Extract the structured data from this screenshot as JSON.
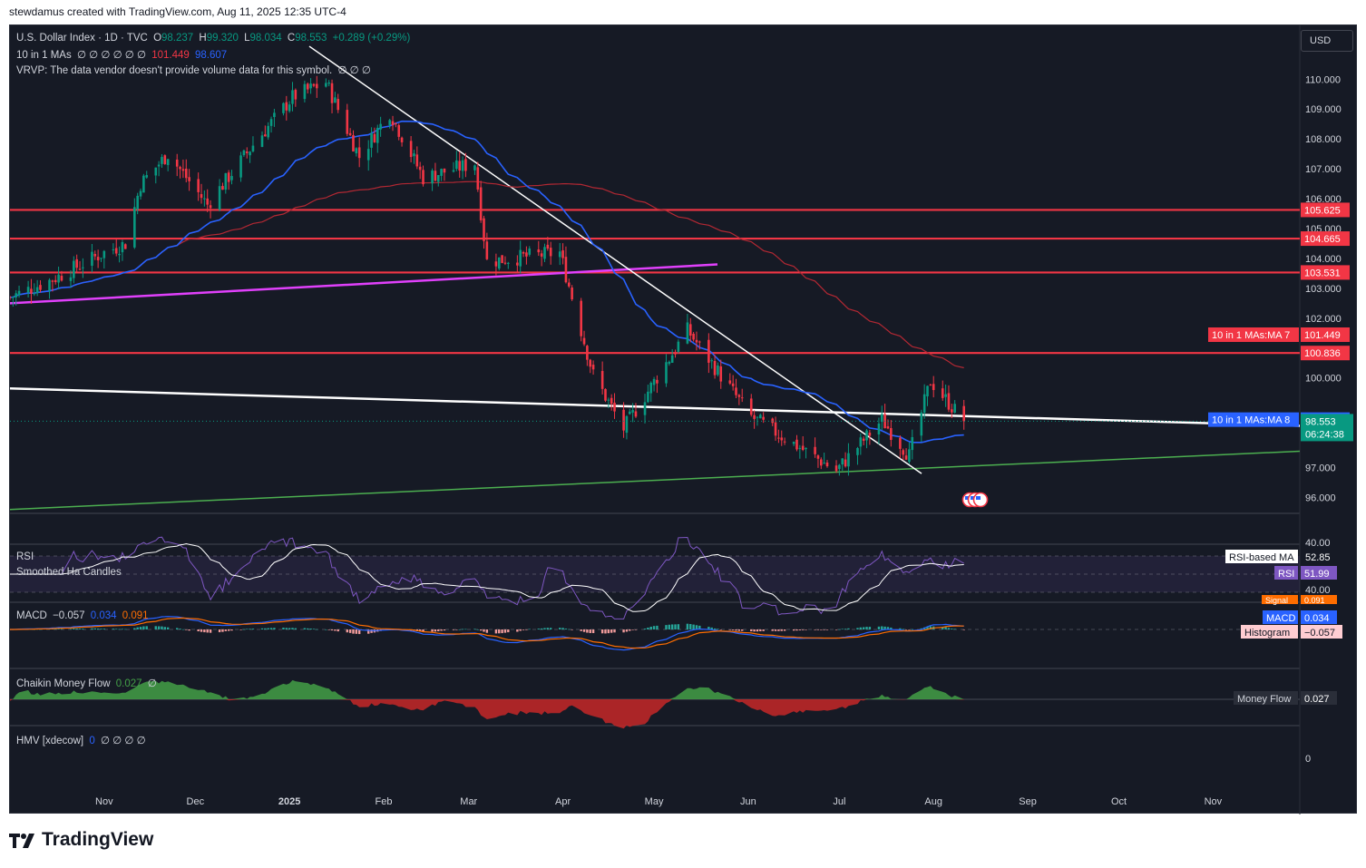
{
  "caption": "stewdamus created with TradingView.com, Aug 11, 2025 12:35 UTC-4",
  "brand": "TradingView",
  "currency_button": "USD",
  "legend": {
    "symbol": "U.S. Dollar Index · 1D · TVC",
    "o_label": "O",
    "o": "98.237",
    "h_label": "H",
    "h": "99.320",
    "l_label": "L",
    "l": "98.034",
    "c_label": "C",
    "c": "98.553",
    "change": "+0.289 (+0.29%)",
    "mas_label": "10 in 1 MAs",
    "mas_placeholders": "∅ ∅ ∅ ∅ ∅ ∅",
    "ma7_value": "101.449",
    "ma8_value": "98.607",
    "vrvp": "VRVP: The data vendor doesn't provide volume data for this symbol.",
    "vrvp_placeholders": "∅ ∅ ∅"
  },
  "panes": {
    "rsi_title": "RSI",
    "ha_title": "Smoothed Ha Candles",
    "rsi_ma_label": "RSI-based MA",
    "rsi_ma_value": "52.85",
    "rsi_label": "RSI",
    "rsi_value": "51.99",
    "rsi_level_top": "40.00",
    "rsi_level_bottom": "40.00",
    "macd_title": "MACD",
    "macd_hist": "−0.057",
    "macd_line": "0.034",
    "macd_signal": "0.091",
    "signal_tag": "Signal",
    "signal_tag_value": "0.091",
    "macd_tag": "MACD",
    "macd_tag_value": "0.034",
    "hist_tag": "Histogram",
    "hist_tag_value": "−0.057",
    "cmf_title": "Chaikin Money Flow",
    "cmf_value": "0.027",
    "cmf_placeholder": "∅",
    "cmf_tag": "Money Flow",
    "cmf_tag_value": "0.027",
    "hmv_title": "HMV [xdecow]",
    "hmv_value": "0",
    "hmv_placeholders": "∅ ∅ ∅ ∅",
    "hmv_axis_zero": "0"
  },
  "price_tags": [
    {
      "label": "",
      "value": "105.625",
      "color": "#f23645",
      "price": 105.625
    },
    {
      "label": "",
      "value": "104.665",
      "color": "#f23645",
      "price": 104.665
    },
    {
      "label": "",
      "value": "103.531",
      "color": "#f23645",
      "price": 103.531
    },
    {
      "label": "10 in 1 MAs:MA 7",
      "value": "101.449",
      "color": "#f23645",
      "price": 101.449
    },
    {
      "label": "",
      "value": "100.836",
      "color": "#f23645",
      "price": 100.836
    },
    {
      "label": "10 in 1 MAs:MA 8",
      "value": "98.607",
      "color": "#2962ff",
      "price": 98.607
    }
  ],
  "current_price": {
    "value": "98.553",
    "countdown": "06:24:38",
    "color": "#089981",
    "price": 98.553
  },
  "colors": {
    "background": "#161a25",
    "up": "#089981",
    "down": "#f23645",
    "ma_blue": "#2962ff",
    "ma_red": "#b22833",
    "level_red": "#f23645",
    "magenta": "#e040fb",
    "green_line": "#4caf50",
    "white_line": "#ffffff",
    "rsi_line": "#7e57c2",
    "macd_line": "#2962ff",
    "signal_line": "#ff6d00",
    "cmf_pos": "#43a047",
    "cmf_neg": "#c62828"
  },
  "chart_data": {
    "type": "candlestick",
    "symbol": "U.S. Dollar Index",
    "interval": "1D",
    "y_ticks": [
      110,
      109,
      108,
      107,
      106,
      105,
      104,
      103,
      102,
      100,
      97,
      96
    ],
    "y_tick_labels": [
      "110.000",
      "109.000",
      "108.000",
      "107.000",
      "106.000",
      "105.000",
      "104.000",
      "103.000",
      "102.000",
      "100.000",
      "97.000",
      "96.000"
    ],
    "ylim": [
      95.5,
      111.8
    ],
    "x_labels": [
      "Nov",
      "Dec",
      "2025",
      "Feb",
      "Mar",
      "Apr",
      "May",
      "Jun",
      "Jul",
      "Aug",
      "Sep",
      "Oct",
      "Nov"
    ],
    "close_path": [
      {
        "date": "2024-10-01",
        "close": 102.7
      },
      {
        "date": "2024-10-15",
        "close": 103.3
      },
      {
        "date": "2024-11-01",
        "close": 104.2
      },
      {
        "date": "2024-11-08",
        "close": 104.5
      },
      {
        "date": "2024-11-13",
        "close": 106.5
      },
      {
        "date": "2024-11-22",
        "close": 107.5
      },
      {
        "date": "2024-12-05",
        "close": 105.8
      },
      {
        "date": "2024-12-20",
        "close": 107.8
      },
      {
        "date": "2025-01-02",
        "close": 109.4
      },
      {
        "date": "2025-01-13",
        "close": 109.9
      },
      {
        "date": "2025-01-24",
        "close": 107.4
      },
      {
        "date": "2025-02-03",
        "close": 108.9
      },
      {
        "date": "2025-02-14",
        "close": 106.7
      },
      {
        "date": "2025-03-03",
        "close": 107.2
      },
      {
        "date": "2025-03-07",
        "close": 103.9
      },
      {
        "date": "2025-03-31",
        "close": 104.2
      },
      {
        "date": "2025-04-11",
        "close": 100.1
      },
      {
        "date": "2025-04-21",
        "close": 98.3
      },
      {
        "date": "2025-05-12",
        "close": 101.6
      },
      {
        "date": "2025-06-02",
        "close": 98.7
      },
      {
        "date": "2025-06-30",
        "close": 96.9
      },
      {
        "date": "2025-07-15",
        "close": 98.6
      },
      {
        "date": "2025-07-24",
        "close": 97.4
      },
      {
        "date": "2025-07-31",
        "close": 99.9
      },
      {
        "date": "2025-08-11",
        "close": 98.553
      }
    ],
    "horizontal_levels": [
      105.625,
      104.665,
      103.531,
      100.836
    ]
  }
}
